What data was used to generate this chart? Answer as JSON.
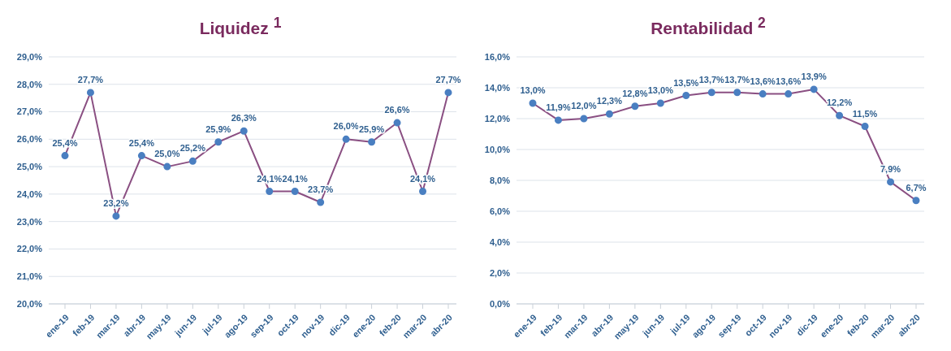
{
  "chart_data": [
    {
      "type": "line",
      "title": "Liquidez $^{1}$",
      "categories": [
        "ene-19",
        "feb-19",
        "mar-19",
        "abr-19",
        "may-19",
        "jun-19",
        "jul-19",
        "ago-19",
        "sep-19",
        "oct-19",
        "nov-19",
        "dic-19",
        "ene-20",
        "feb-20",
        "mar-20",
        "abr-20"
      ],
      "series": [
        {
          "color": "#8a4f82",
          "values": [
            25.4,
            27.7,
            23.2,
            25.4,
            25.0,
            25.2,
            25.9,
            26.3,
            24.1,
            24.1,
            23.7,
            26.0,
            25.9,
            26.6,
            24.1,
            27.7
          ],
          "value_labels": [
            "25,4%",
            "27,7%",
            "23,2%",
            "25,4%",
            "25,0%",
            "25,2%",
            "25,9%",
            "26,3%",
            "24,1%",
            "24,1%",
            "23,7%",
            "26,0%",
            "25,9%",
            "26,6%",
            "24,1%",
            "27,7%"
          ]
        }
      ],
      "ylim": [
        20,
        29
      ],
      "yticks": [
        {
          "value": 20,
          "label": "20,0%"
        },
        {
          "value": 21,
          "label": "21,0%"
        },
        {
          "value": 22,
          "label": "22,0%"
        },
        {
          "value": 23,
          "label": "23,0%"
        },
        {
          "value": 24,
          "label": "24,0%"
        },
        {
          "value": 25,
          "label": "25,0%"
        },
        {
          "value": 26,
          "label": "26,0%"
        },
        {
          "value": 27,
          "label": "27,0%"
        },
        {
          "value": 28,
          "label": "28,0%"
        },
        {
          "value": 29,
          "label": "29,0%"
        }
      ],
      "grid": "y",
      "marker": "circle",
      "line_style": "solid",
      "legend": false
    },
    {
      "type": "line",
      "title": "Rentabilidad $^{2}$",
      "categories": [
        "ene-19",
        "feb-19",
        "mar-19",
        "abr-19",
        "may-19",
        "jun-19",
        "jul-19",
        "ago-19",
        "sep-19",
        "oct-19",
        "nov-19",
        "dic-19",
        "ene-20",
        "feb-20",
        "mar-20",
        "abr-20"
      ],
      "series": [
        {
          "color": "#8a4f82",
          "values": [
            13.0,
            11.9,
            12.0,
            12.3,
            12.8,
            13.0,
            13.5,
            13.7,
            13.7,
            13.6,
            13.6,
            13.9,
            12.2,
            11.5,
            7.9,
            6.7
          ],
          "value_labels": [
            "13,0%",
            "11,9%",
            "12,0%",
            "12,3%",
            "12,8%",
            "13,0%",
            "13,5%",
            "13,7%",
            "13,7%",
            "13,6%",
            "13,6%",
            "13,9%",
            "12,2%",
            "11,5%",
            "7,9%",
            "6,7%"
          ]
        }
      ],
      "ylim": [
        0,
        16
      ],
      "yticks": [
        {
          "value": 0,
          "label": "0,0%"
        },
        {
          "value": 2,
          "label": "2,0%"
        },
        {
          "value": 4,
          "label": "4,0%"
        },
        {
          "value": 6,
          "label": "6,0%"
        },
        {
          "value": 8,
          "label": "8,0%"
        },
        {
          "value": 10,
          "label": "10,0%"
        },
        {
          "value": 12,
          "label": "12,0%"
        },
        {
          "value": 14,
          "label": "14,0%"
        },
        {
          "value": 16,
          "label": "16,0%"
        }
      ],
      "grid": "y",
      "marker": "circle",
      "line_style": "solid",
      "legend": false
    }
  ]
}
